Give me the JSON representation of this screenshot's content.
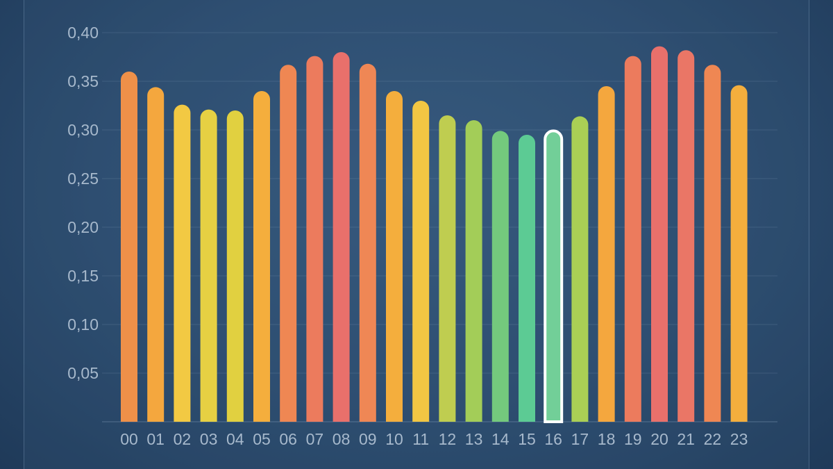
{
  "chart_data": {
    "type": "bar",
    "categories": [
      "00",
      "01",
      "02",
      "03",
      "04",
      "05",
      "06",
      "07",
      "08",
      "09",
      "10",
      "11",
      "12",
      "13",
      "14",
      "15",
      "16",
      "17",
      "18",
      "19",
      "20",
      "21",
      "22",
      "23"
    ],
    "values": [
      0.36,
      0.344,
      0.326,
      0.321,
      0.32,
      0.34,
      0.367,
      0.376,
      0.38,
      0.368,
      0.34,
      0.33,
      0.315,
      0.31,
      0.299,
      0.295,
      0.299,
      0.314,
      0.345,
      0.376,
      0.386,
      0.382,
      0.367,
      0.346
    ],
    "colors": [
      "#ee9049",
      "#f4a73e",
      "#f2c943",
      "#e6d043",
      "#e1d040",
      "#f4ae3d",
      "#ef8753",
      "#ec7b5d",
      "#e9706b",
      "#ef8755",
      "#f4ae3d",
      "#f2c643",
      "#bfcd50",
      "#a3cd58",
      "#74c97d",
      "#5ccb94",
      "#72cf98",
      "#aacf55",
      "#f4a73e",
      "#ec7b5d",
      "#e9706b",
      "#ea7666",
      "#ef8753",
      "#f4ae3d"
    ],
    "highlighted_index": 16,
    "y_ticks": [
      "0,05",
      "0,10",
      "0,15",
      "0,20",
      "0,25",
      "0,30",
      "0,35",
      "0,40"
    ],
    "y_tick_values": [
      0.05,
      0.1,
      0.15,
      0.2,
      0.25,
      0.3,
      0.35,
      0.4
    ],
    "ylim": [
      0,
      0.4
    ],
    "grid": true,
    "title": "",
    "xlabel": "",
    "ylabel": ""
  }
}
